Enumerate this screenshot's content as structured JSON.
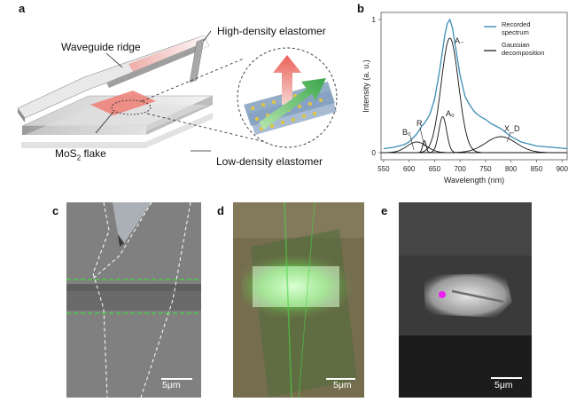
{
  "panel_a": {
    "letter": "a",
    "waveguide_ridge": "Waveguide ridge",
    "high_density": "High-density elastomer",
    "mos2_flake_main": "MoS",
    "mos2_flake_sub": "2",
    "mos2_flake_tail": " flake",
    "low_density": "Low-density elastomer"
  },
  "panel_b": {
    "letter": "b",
    "ylabel": "Intensity (a. u.)",
    "xlabel": "Wavelength (nm)",
    "legend": {
      "recorded": "Recorded spectrum",
      "recorded_l1": "Recorded",
      "recorded_l2": "spectrum",
      "gaussian_l1": "Gaussian",
      "gaussian_l2": "decomposition"
    },
    "peak_labels": {
      "A_minus": "A₋",
      "A0": "A₀",
      "B0": "B₀",
      "R": "R",
      "XD": "X_D"
    },
    "colors": {
      "recorded": "#3b8db5",
      "gaussian": "#111111"
    }
  },
  "chart_data": {
    "type": "line",
    "xlabel": "Wavelength (nm)",
    "ylabel": "Intensity (a. u.)",
    "xlim": [
      545,
      910
    ],
    "ylim": [
      0,
      1
    ],
    "xticks": [
      550,
      600,
      650,
      700,
      750,
      800,
      850,
      900
    ],
    "yticks": [
      0,
      1
    ],
    "series": [
      {
        "name": "Recorded spectrum",
        "x": [
          550,
          570,
          590,
          600,
          610,
          615,
          620,
          625,
          630,
          640,
          650,
          660,
          670,
          675,
          680,
          685,
          690,
          700,
          710,
          720,
          730,
          740,
          750,
          760,
          770,
          780,
          790,
          800,
          820,
          850,
          880,
          910
        ],
        "values": [
          0.03,
          0.04,
          0.06,
          0.08,
          0.12,
          0.14,
          0.17,
          0.2,
          0.22,
          0.28,
          0.4,
          0.62,
          0.88,
          0.97,
          1.0,
          0.94,
          0.82,
          0.58,
          0.42,
          0.35,
          0.3,
          0.27,
          0.25,
          0.22,
          0.2,
          0.18,
          0.15,
          0.12,
          0.08,
          0.05,
          0.04,
          0.03
        ]
      },
      {
        "name": "Gaussian decomposition",
        "components": [
          {
            "label": "A₋",
            "center": 680,
            "amplitude": 0.86,
            "fwhm": 40
          },
          {
            "label": "A₀",
            "center": 666,
            "amplitude": 0.27,
            "fwhm": 18
          },
          {
            "label": "B₀",
            "center": 615,
            "amplitude": 0.08,
            "fwhm": 45
          },
          {
            "label": "R",
            "center": 630,
            "amplitude": 0.09,
            "fwhm": 8
          },
          {
            "label": "X_D",
            "center": 780,
            "amplitude": 0.12,
            "fwhm": 70
          }
        ]
      }
    ]
  },
  "panel_c": {
    "letter": "c",
    "scale": "5μm"
  },
  "panel_d": {
    "letter": "d",
    "scale": "5μm"
  },
  "panel_e": {
    "letter": "e",
    "scale": "5μm"
  }
}
